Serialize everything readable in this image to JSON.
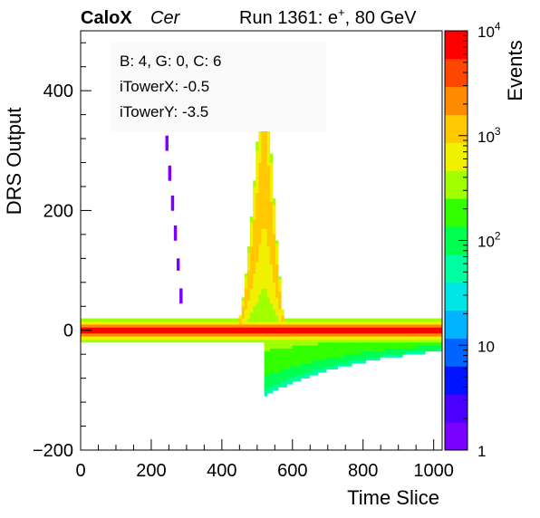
{
  "header": {
    "experiment": "CaloX",
    "channel": "Cer",
    "run_prefix": "Run 1361: e",
    "run_particle_sup": "+",
    "run_suffix": ", 80 GeV"
  },
  "legend_box": {
    "lines": [
      "B: 4, G: 0, C: 6",
      "iTowerX: -0.5",
      "iTowerY: -3.5"
    ]
  },
  "chart_data": {
    "type": "heatmap",
    "xlabel": "Time Slice",
    "ylabel": "DRS Output",
    "zlabel": "Events",
    "xlim": [
      0,
      1024
    ],
    "ylim": [
      -200,
      500
    ],
    "zlim": [
      1,
      10000
    ],
    "z_log_scale": true,
    "x_ticks": [
      "0",
      "200",
      "400",
      "600",
      "800",
      "1000"
    ],
    "y_ticks": [
      "−200",
      "0",
      "200",
      "400"
    ],
    "z_ticks": [
      {
        "base": "1",
        "exp": ""
      },
      {
        "base": "10",
        "exp": ""
      },
      {
        "base": "10",
        "exp": "2"
      },
      {
        "base": "10",
        "exp": "3"
      },
      {
        "base": "10",
        "exp": "4"
      }
    ],
    "baseline": {
      "x_range": [
        0,
        1024
      ],
      "y_center": 0,
      "y_halfwidth_core": 5,
      "y_halfwidth_full": 22,
      "counts_core": 10000
    },
    "pulse": {
      "x_start": 440,
      "x_peak": 520,
      "x_end": 580,
      "y_peak": 500,
      "counts_max": 1000
    },
    "undershoot": {
      "x_range": [
        520,
        1024
      ],
      "y_min": -90,
      "counts_typ": 300
    },
    "sparse_trace": {
      "x_range": [
        215,
        290
      ],
      "y_range": [
        20,
        500
      ],
      "counts": 1
    },
    "colors": [
      "#7a00ff",
      "#4b00ff",
      "#0014ff",
      "#0064ff",
      "#00b4ff",
      "#00e6e6",
      "#00ffa0",
      "#00ff50",
      "#32ff00",
      "#a0ff00",
      "#f0f000",
      "#ffc800",
      "#ff8c00",
      "#ff4600",
      "#ff0000"
    ]
  }
}
